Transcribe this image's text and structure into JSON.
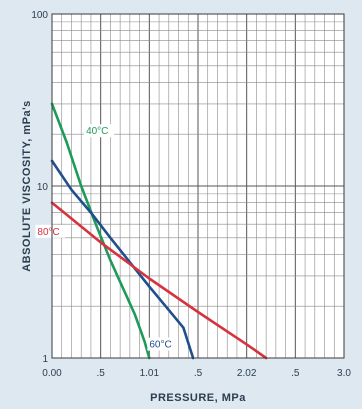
{
  "chart_data": {
    "type": "line",
    "xlabel": "PRESSURE, MPa",
    "ylabel": "ABSOLUTE VISCOSITY, mPa's",
    "xlim": [
      0,
      3.0
    ],
    "ylim": [
      1,
      100
    ],
    "y_scale": "log",
    "grid": true,
    "x_tick_labels": [
      {
        "value": 0.0,
        "label": "0.00"
      },
      {
        "value": 0.5,
        "label": ".5"
      },
      {
        "value": 1.0,
        "label": "1.01"
      },
      {
        "value": 1.5,
        "label": ".5"
      },
      {
        "value": 2.0,
        "label": "2.02"
      },
      {
        "value": 2.5,
        "label": ".5"
      },
      {
        "value": 3.0,
        "label": "3.0"
      }
    ],
    "y_tick_labels": [
      {
        "value": 1,
        "label": "1"
      },
      {
        "value": 10,
        "label": "10"
      },
      {
        "value": 100,
        "label": "100"
      }
    ],
    "series": [
      {
        "name": "40°C",
        "color": "#1e9a5a",
        "x": [
          0.0,
          0.15,
          0.3,
          0.45,
          0.6,
          0.75,
          0.85,
          0.95,
          1.0
        ],
        "y": [
          30,
          18,
          10,
          6,
          3.7,
          2.4,
          1.8,
          1.25,
          1.0
        ]
      },
      {
        "name": "60°C",
        "color": "#1f4f8c",
        "x": [
          0.0,
          0.2,
          0.4,
          0.6,
          0.8,
          1.0,
          1.2,
          1.35,
          1.45
        ],
        "y": [
          14,
          9.5,
          7,
          5,
          3.6,
          2.6,
          1.9,
          1.5,
          1.0
        ]
      },
      {
        "name": "80°C",
        "color": "#d6333f",
        "x": [
          0.0,
          0.5,
          1.0,
          1.5,
          2.0,
          2.2
        ],
        "y": [
          8,
          4.7,
          2.9,
          1.85,
          1.2,
          1.0
        ]
      }
    ]
  }
}
